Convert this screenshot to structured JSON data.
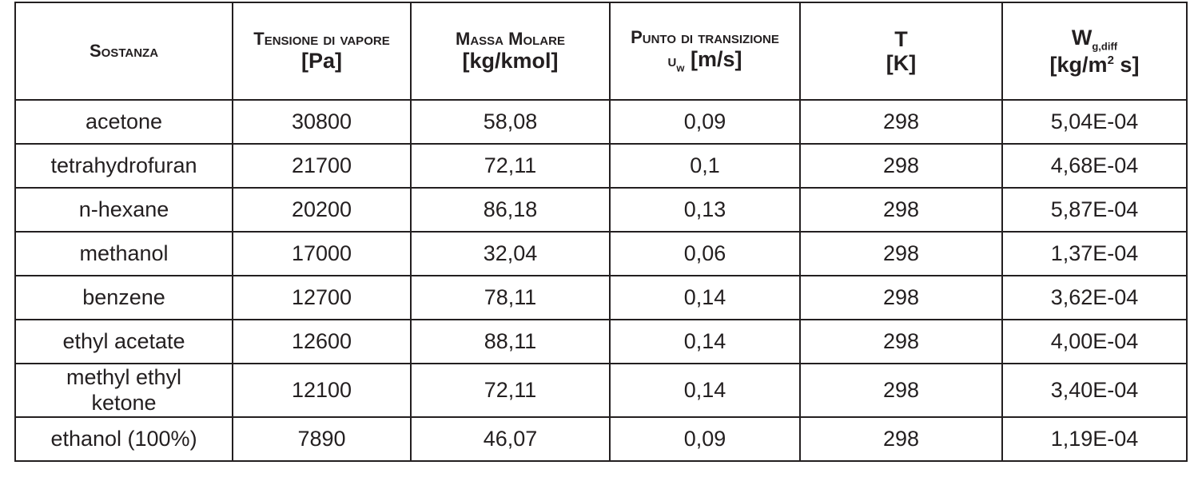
{
  "table": {
    "header": [
      {
        "title": "Sostanza"
      },
      {
        "title": "Tensione di vapore",
        "unit": "[Pa]"
      },
      {
        "title": "Massa Molare",
        "unit": "[kg/kmol]"
      },
      {
        "title": "Punto di transizione",
        "symbol": "u",
        "symbol_sub": "w",
        "unit": "[m/s]"
      },
      {
        "symbol": "T",
        "unit": "[K]"
      },
      {
        "symbol": "W",
        "symbol_sub": "g,diff",
        "unit": [
          "[kg/m",
          "2",
          "s]"
        ]
      }
    ],
    "rows": [
      [
        "acetone",
        "30800",
        "58,08",
        "0,09",
        "298",
        "5,04E-04"
      ],
      [
        "tetrahydrofuran",
        "21700",
        "72,11",
        "0,1",
        "298",
        "4,68E-04"
      ],
      [
        "n-hexane",
        "20200",
        "86,18",
        "0,13",
        "298",
        "5,87E-04"
      ],
      [
        "methanol",
        "17000",
        "32,04",
        "0,06",
        "298",
        "1,37E-04"
      ],
      [
        "benzene",
        "12700",
        "78,11",
        "0,14",
        "298",
        "3,62E-04"
      ],
      [
        "ethyl acetate",
        "12600",
        "88,11",
        "0,14",
        "298",
        "4,00E-04"
      ],
      [
        "methyl ethyl ketone",
        "12100",
        "72,11",
        "0,14",
        "298",
        "3,40E-04"
      ],
      [
        "ethanol (100%)",
        "7890",
        "46,07",
        "0,09",
        "298",
        "1,19E-04"
      ]
    ]
  }
}
